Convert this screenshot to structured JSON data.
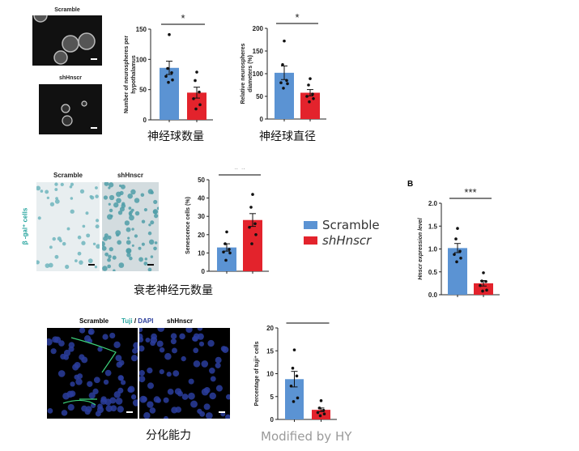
{
  "colors": {
    "scramble": "#5b93d3",
    "shHnscr": "#e3232c",
    "tuji": "#2aa6a0",
    "dapi": "#2a3d9c",
    "watermark": "#9a9a9a"
  },
  "panel_neurosphere": {
    "img_label_1": "Scramble",
    "img_label_2": "shHnscr",
    "caption_count": "神经球数量",
    "caption_diameter": "神经球直径"
  },
  "panel_senescence": {
    "img_label_1": "Scramble",
    "img_label_2": "shHnscr",
    "side_label": "β -gal⁺ cells",
    "caption": "衰老神经元数量"
  },
  "legend": [
    {
      "label": "Scramble",
      "color": "#5b93d3"
    },
    {
      "label": "shHnscr",
      "color": "#e3232c"
    }
  ],
  "panel_b_label": "B",
  "panel_diff": {
    "label_scramble": "Scramble",
    "label_tuji": "Tuji",
    "label_sep": " / ",
    "label_dapi": "DAPI",
    "label_sh": "shHnscr",
    "caption": "分化能力"
  },
  "watermark": "Modified by HY",
  "chart_data": [
    {
      "type": "bar",
      "ylabel": "Number of neurospheres per hypothalamus",
      "ylim": [
        0,
        150
      ],
      "yticks": [
        0,
        50,
        100,
        150
      ],
      "significance": "*",
      "categories": [
        "Scramble",
        "shHnscr"
      ],
      "values": [
        86,
        45
      ],
      "sem": [
        11,
        9
      ],
      "points": [
        [
          141,
          85,
          78,
          72,
          66,
          62
        ],
        [
          79,
          65,
          46,
          35,
          25,
          18
        ]
      ]
    },
    {
      "type": "bar",
      "ylabel": "Relative neurospheres diameters (%)",
      "ylim": [
        0,
        200
      ],
      "yticks": [
        0,
        50,
        100,
        150,
        200
      ],
      "significance": "*",
      "categories": [
        "Scramble",
        "shHnscr"
      ],
      "values": [
        102,
        58
      ],
      "sem": [
        15,
        7
      ],
      "points": [
        [
          172,
          120,
          85,
          80,
          78,
          68
        ],
        [
          89,
          75,
          55,
          50,
          45,
          38
        ]
      ]
    },
    {
      "type": "bar",
      "ylabel": "Senescence cells (%)",
      "ylim": [
        0,
        50
      ],
      "yticks": [
        0,
        10,
        20,
        30,
        40,
        50
      ],
      "significance": "* *",
      "categories": [
        "Scramble",
        "shHnscr"
      ],
      "values": [
        13,
        28
      ],
      "sem": [
        2,
        3.5
      ],
      "points": [
        [
          21.5,
          15,
          12,
          10.5,
          10,
          6
        ],
        [
          42,
          35,
          26,
          24,
          20,
          15
        ]
      ]
    },
    {
      "type": "bar",
      "ylabel": "Hnscr expression level",
      "ylim": [
        0,
        2
      ],
      "yticks": [
        "0.0",
        "0.5",
        "1.0",
        "1.5",
        "2.0"
      ],
      "significance": "***",
      "categories": [
        "Scramble",
        "shHnscr"
      ],
      "values": [
        1.02,
        0.25
      ],
      "sem": [
        0.1,
        0.06
      ],
      "points": [
        [
          1.45,
          1.22,
          0.95,
          0.88,
          0.8,
          0.72
        ],
        [
          0.48,
          0.3,
          0.29,
          0.2,
          0.1,
          0.08
        ]
      ]
    },
    {
      "type": "bar",
      "ylabel": "Percentage of tuji⁺ cells",
      "ylim": [
        0,
        20
      ],
      "yticks": [
        0,
        5,
        10,
        15,
        20
      ],
      "significance": "**",
      "categories": [
        "Scramble",
        "shHnscr"
      ],
      "values": [
        8.8,
        2.1
      ],
      "sem": [
        1.7,
        0.4
      ],
      "points": [
        [
          15.2,
          11.2,
          9.5,
          7.3,
          4.7,
          3.9
        ],
        [
          4.1,
          2.5,
          2.0,
          1.5,
          1.2,
          0.8
        ]
      ]
    }
  ]
}
